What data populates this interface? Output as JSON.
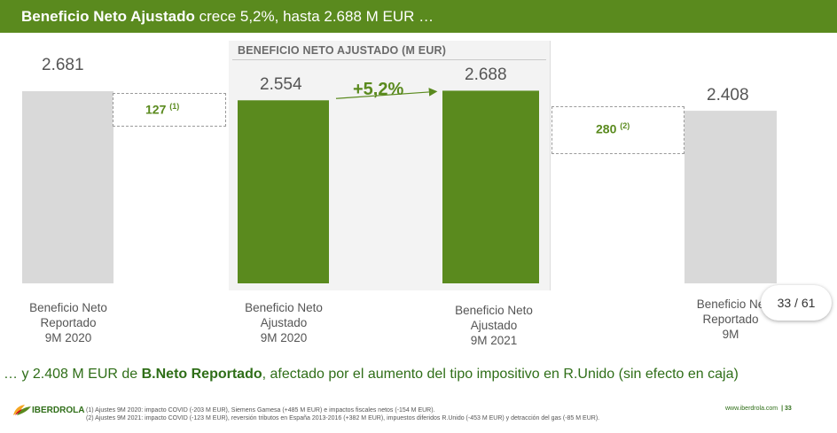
{
  "header": {
    "title_bold": "Beneficio Neto Ajustado",
    "title_rest": "crece 5,2%, hasta 2.688 M EUR …"
  },
  "panel": {
    "title": "BENEFICIO NETO AJUSTADO (M EUR)"
  },
  "chart_data": {
    "type": "bar",
    "title": "BENEFICIO NETO AJUSTADO (M EUR)",
    "categories": [
      [
        "Beneficio Neto",
        "Reportado",
        "9M 2020"
      ],
      [
        "Beneficio Neto",
        "Ajustado",
        "9M 2020"
      ],
      [
        "Beneficio Neto",
        "Ajustado",
        "9M 2021"
      ],
      [
        "Beneficio Ne",
        "Reportado",
        "9M"
      ]
    ],
    "values": [
      2681,
      2554,
      2688,
      2408
    ],
    "value_labels": [
      "2.681",
      "2.554",
      "2.688",
      "2.408"
    ],
    "colors": [
      "#d9d9d9",
      "#5a8a1e",
      "#5a8a1e",
      "#d9d9d9"
    ],
    "adjustments": [
      {
        "value": "127",
        "note": "(1)"
      },
      {
        "value": "280",
        "note": "(2)"
      }
    ],
    "growth_label": "+5,2%",
    "ylim": [
      0,
      2681
    ],
    "grid": false
  },
  "page_indicator": "33 / 61",
  "bottom": {
    "prefix": "… y 2.408 M EUR de ",
    "bold": "B.Neto Reportado",
    "suffix": ", afectado por el aumento del tipo impositivo en R.Unido (sin efecto en caja)"
  },
  "footer": {
    "logo_text": "IBERDROLA",
    "notes": [
      "(1)   Ajustes 9M 2020: impacto COVID (-203 M EUR), Siemens Gamesa (+485 M EUR) e impactos fiscales netos (-154 M EUR).",
      "(2)   Ajustes 9M 2021: impacto COVID (-123 M EUR), reversión tributos en España 2013-2016 (+382 M EUR), impuestos diferidos R.Unido (-453 M EUR) y detracción del gas (-85 M EUR)."
    ],
    "site": "www.iberdrola.com",
    "page": "| 33"
  }
}
